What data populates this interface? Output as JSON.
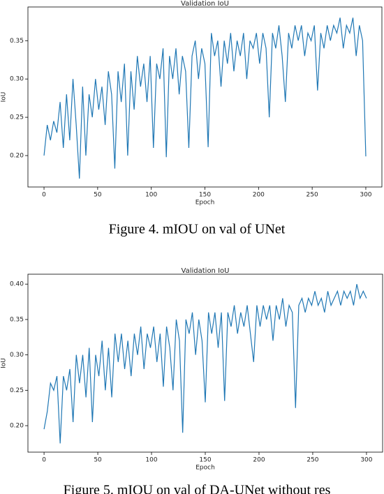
{
  "chart_data": [
    {
      "type": "line",
      "title": "Validation IoU",
      "xlabel": "Epoch",
      "ylabel": "IoU",
      "x": [
        0,
        3,
        6,
        9,
        12,
        15,
        18,
        21,
        24,
        27,
        30,
        33,
        36,
        39,
        42,
        45,
        48,
        51,
        54,
        57,
        60,
        63,
        66,
        69,
        72,
        75,
        78,
        81,
        84,
        87,
        90,
        93,
        96,
        99,
        102,
        105,
        108,
        111,
        114,
        117,
        120,
        123,
        126,
        129,
        132,
        135,
        138,
        141,
        144,
        147,
        150,
        153,
        156,
        159,
        162,
        165,
        168,
        171,
        174,
        177,
        180,
        183,
        186,
        189,
        192,
        195,
        198,
        201,
        204,
        207,
        210,
        213,
        216,
        219,
        222,
        225,
        228,
        231,
        234,
        237,
        240,
        243,
        246,
        249,
        252,
        255,
        258,
        261,
        264,
        267,
        270,
        273,
        276,
        279,
        282,
        285,
        288,
        291,
        294,
        297,
        300
      ],
      "series": [
        {
          "color": "#1f77b4",
          "values": [
            0.2,
            0.24,
            0.22,
            0.245,
            0.23,
            0.27,
            0.21,
            0.28,
            0.22,
            0.3,
            0.24,
            0.17,
            0.29,
            0.2,
            0.28,
            0.25,
            0.3,
            0.26,
            0.29,
            0.24,
            0.31,
            0.28,
            0.183,
            0.31,
            0.27,
            0.32,
            0.2,
            0.31,
            0.26,
            0.33,
            0.29,
            0.32,
            0.27,
            0.33,
            0.21,
            0.32,
            0.3,
            0.34,
            0.198,
            0.33,
            0.3,
            0.34,
            0.28,
            0.33,
            0.31,
            0.21,
            0.33,
            0.35,
            0.3,
            0.34,
            0.32,
            0.211,
            0.36,
            0.33,
            0.35,
            0.29,
            0.35,
            0.32,
            0.36,
            0.31,
            0.35,
            0.33,
            0.36,
            0.3,
            0.35,
            0.34,
            0.36,
            0.32,
            0.36,
            0.34,
            0.25,
            0.36,
            0.34,
            0.37,
            0.33,
            0.27,
            0.36,
            0.34,
            0.37,
            0.35,
            0.37,
            0.33,
            0.36,
            0.35,
            0.37,
            0.285,
            0.36,
            0.34,
            0.37,
            0.35,
            0.37,
            0.36,
            0.38,
            0.34,
            0.37,
            0.36,
            0.38,
            0.33,
            0.37,
            0.35,
            0.199
          ]
        }
      ],
      "xlim": [
        -15,
        315
      ],
      "ylim": [
        0.159,
        0.394
      ],
      "xticks": [
        0,
        50,
        100,
        150,
        200,
        250,
        300
      ],
      "yticks": [
        {
          "value": 0.2,
          "label": "0.20"
        },
        0.25,
        {
          "value": 0.3,
          "label": "0.30"
        },
        0.35
      ]
    },
    {
      "type": "line",
      "title": "Validation IoU",
      "xlabel": "Epoch",
      "ylabel": "IoU",
      "x": [
        0,
        3,
        6,
        9,
        12,
        15,
        18,
        21,
        24,
        27,
        30,
        33,
        36,
        39,
        42,
        45,
        48,
        51,
        54,
        57,
        60,
        63,
        66,
        69,
        72,
        75,
        78,
        81,
        84,
        87,
        90,
        93,
        96,
        99,
        102,
        105,
        108,
        111,
        114,
        117,
        120,
        123,
        126,
        129,
        132,
        135,
        138,
        141,
        144,
        147,
        150,
        153,
        156,
        159,
        162,
        165,
        168,
        171,
        174,
        177,
        180,
        183,
        186,
        189,
        192,
        195,
        198,
        201,
        204,
        207,
        210,
        213,
        216,
        219,
        222,
        225,
        228,
        231,
        234,
        237,
        240,
        243,
        246,
        249,
        252,
        255,
        258,
        261,
        264,
        267,
        270,
        273,
        276,
        279,
        282,
        285,
        288,
        291,
        294,
        297,
        300
      ],
      "series": [
        {
          "color": "#1f77b4",
          "values": [
            0.195,
            0.22,
            0.26,
            0.25,
            0.27,
            0.175,
            0.27,
            0.25,
            0.28,
            0.205,
            0.3,
            0.26,
            0.3,
            0.24,
            0.31,
            0.205,
            0.3,
            0.27,
            0.32,
            0.25,
            0.31,
            0.24,
            0.33,
            0.29,
            0.33,
            0.28,
            0.32,
            0.27,
            0.33,
            0.3,
            0.34,
            0.28,
            0.33,
            0.31,
            0.34,
            0.29,
            0.33,
            0.255,
            0.34,
            0.31,
            0.25,
            0.35,
            0.32,
            0.19,
            0.35,
            0.33,
            0.36,
            0.3,
            0.35,
            0.32,
            0.233,
            0.36,
            0.33,
            0.36,
            0.31,
            0.36,
            0.235,
            0.36,
            0.34,
            0.37,
            0.33,
            0.36,
            0.34,
            0.37,
            0.33,
            0.29,
            0.37,
            0.34,
            0.37,
            0.35,
            0.37,
            0.32,
            0.37,
            0.35,
            0.38,
            0.34,
            0.37,
            0.36,
            0.225,
            0.37,
            0.38,
            0.36,
            0.38,
            0.37,
            0.39,
            0.37,
            0.38,
            0.36,
            0.39,
            0.37,
            0.38,
            0.39,
            0.37,
            0.39,
            0.38,
            0.39,
            0.37,
            0.4,
            0.38,
            0.39,
            0.38
          ]
        }
      ],
      "xlim": [
        -15,
        315
      ],
      "ylim": [
        0.1626,
        0.414
      ],
      "xticks": [
        0,
        50,
        100,
        150,
        200,
        250,
        300
      ],
      "yticks": [
        {
          "value": 0.2,
          "label": "0.20"
        },
        0.25,
        {
          "value": 0.3,
          "label": "0.30"
        },
        0.35,
        {
          "value": 0.4,
          "label": "0.40"
        }
      ]
    }
  ],
  "figure_captions": [
    "Figure 4. mIOU on val of UNet",
    "Figure 5. mIOU on val of DA-UNet without res"
  ]
}
